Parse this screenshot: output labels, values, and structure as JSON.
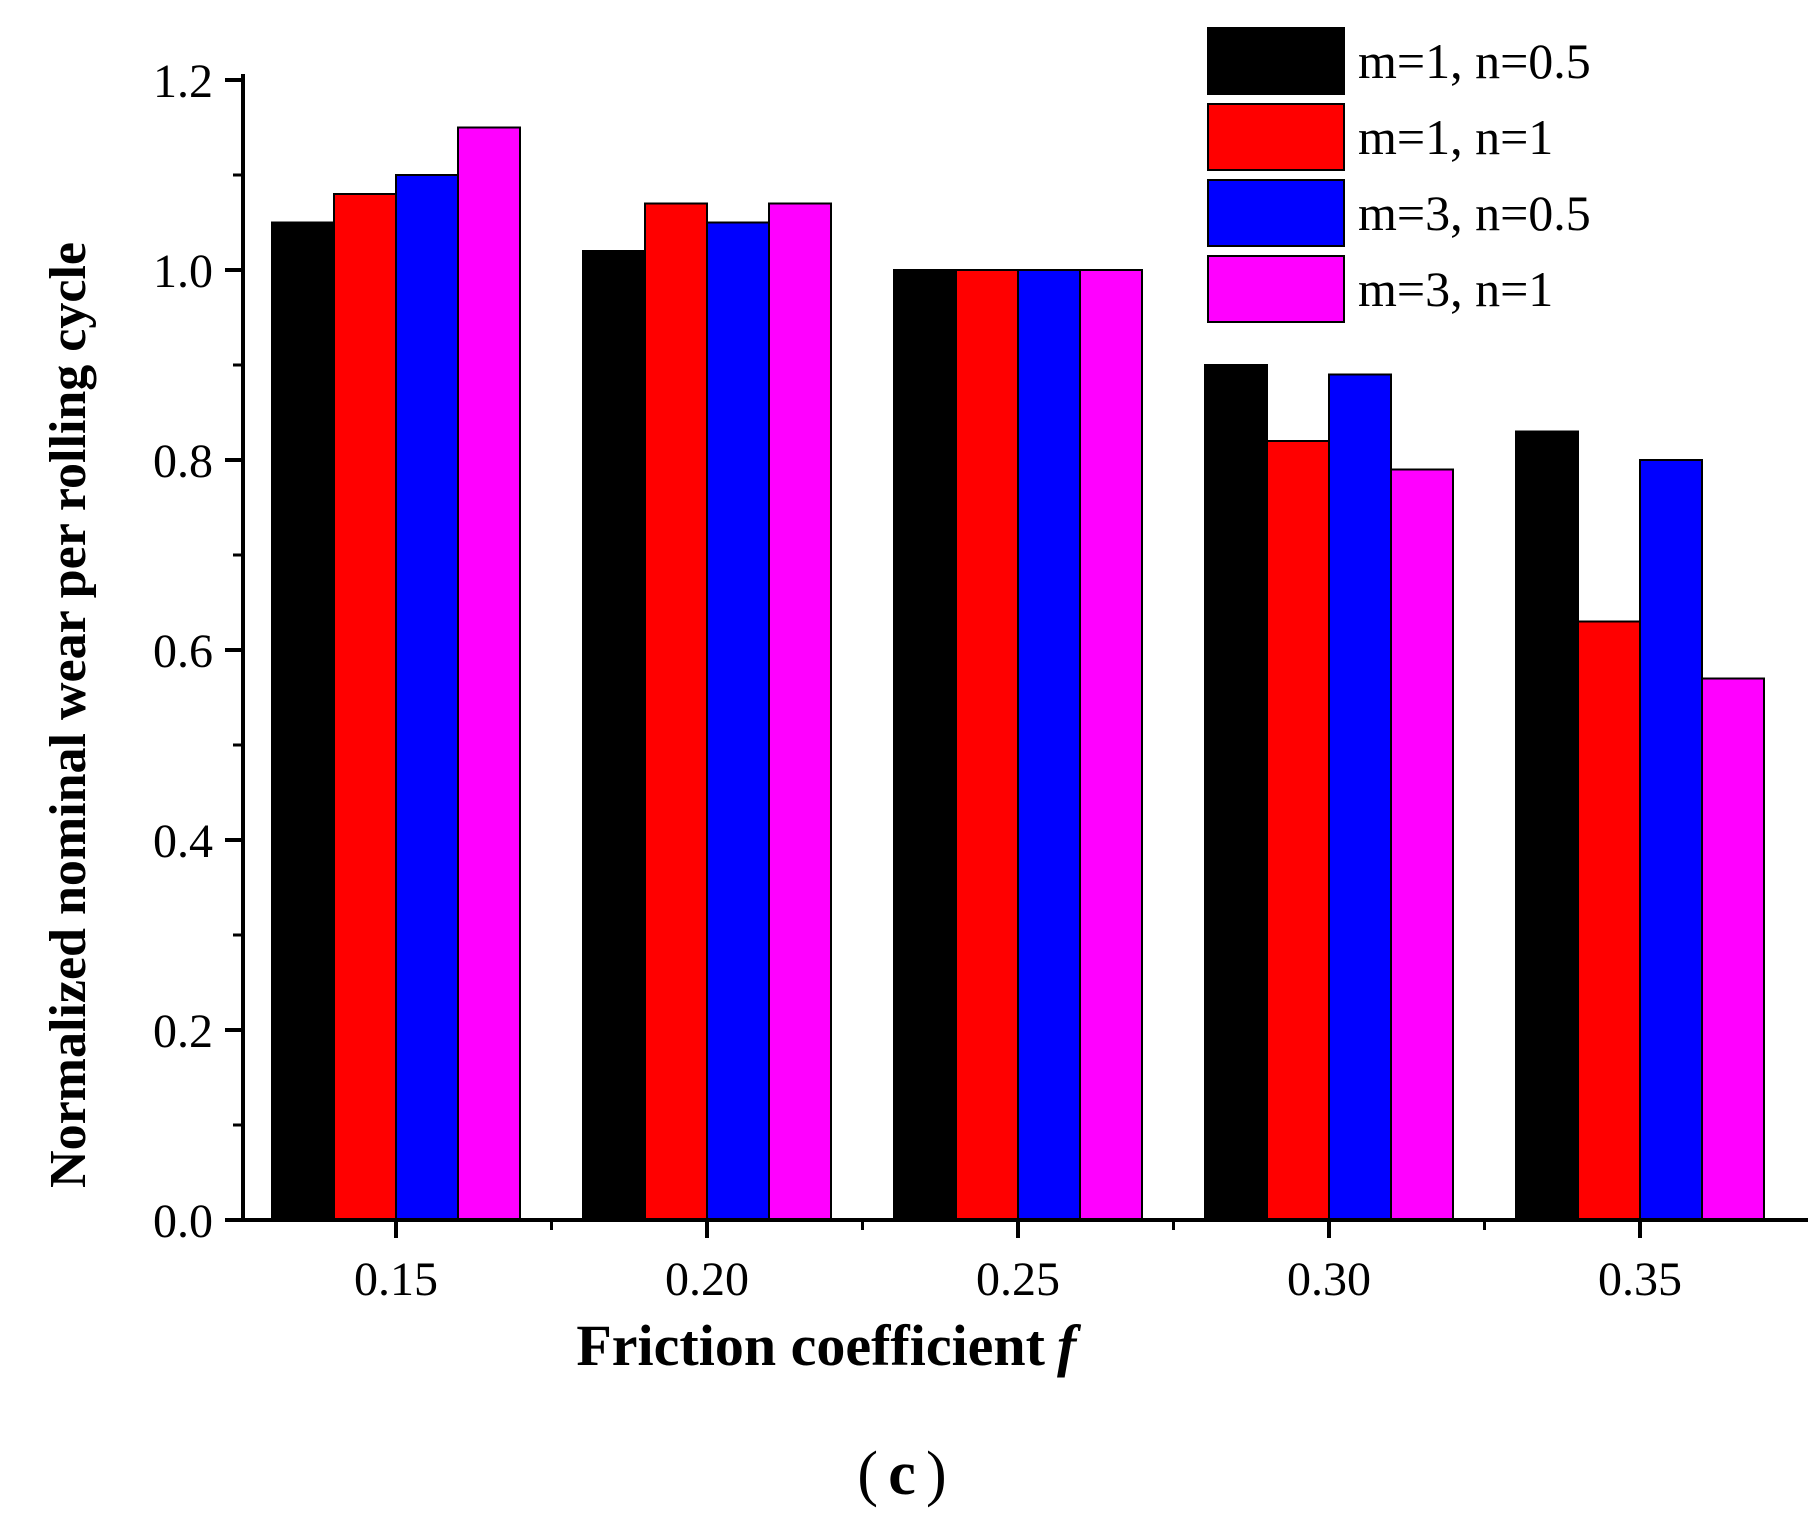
{
  "chart_data": {
    "type": "bar",
    "title": "",
    "xlabel": "Friction coefficient",
    "xlabel_symbol": "f",
    "ylabel": "Normalized nominal wear per rolling cycle",
    "panel_label": "c",
    "categories": [
      "0.15",
      "0.20",
      "0.25",
      "0.30",
      "0.35"
    ],
    "ylim": [
      0,
      1.2
    ],
    "y_ticks": [
      0.0,
      0.2,
      0.4,
      0.6,
      0.8,
      1.0,
      1.2
    ],
    "y_tick_labels": [
      "0.0",
      "0.2",
      "0.4",
      "0.6",
      "0.8",
      "1.0",
      "1.2"
    ],
    "grid": false,
    "legend_position": "top-right",
    "series": [
      {
        "name": "m=1, n=0.5",
        "color": "#000000",
        "values": [
          1.05,
          1.02,
          1.0,
          0.9,
          0.83
        ]
      },
      {
        "name": "m=1, n=1",
        "color": "#ff0000",
        "values": [
          1.08,
          1.07,
          1.0,
          0.82,
          0.63
        ]
      },
      {
        "name": "m=3, n=0.5",
        "color": "#0000ff",
        "values": [
          1.1,
          1.05,
          1.0,
          0.89,
          0.8
        ]
      },
      {
        "name": "m=3, n=1",
        "color": "#ff00ff",
        "values": [
          1.15,
          1.07,
          1.0,
          0.79,
          0.57
        ]
      }
    ]
  }
}
